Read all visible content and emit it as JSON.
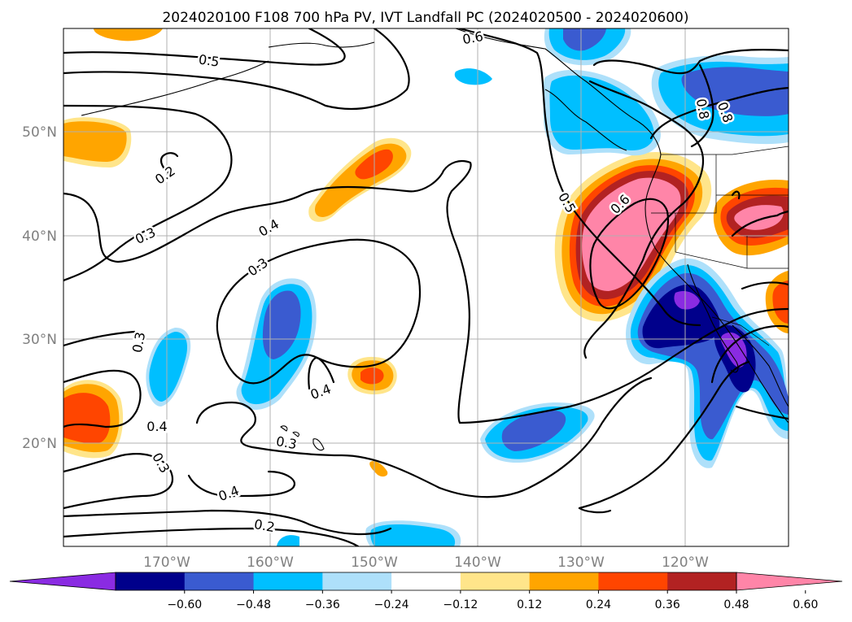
{
  "title": "2024020100 F108 700 hPa PV, IVT Landfall PC (2024020500 - 2024020600)",
  "map": {
    "lon_labels": [
      "170°W",
      "160°W",
      "150°W",
      "140°W",
      "130°W",
      "120°W"
    ],
    "lat_labels": [
      "50°N",
      "40°N",
      "30°N",
      "20°N"
    ],
    "contour_labels": [
      "0.5",
      "0.6",
      "0.2",
      "0.3",
      "0.4",
      "0.3",
      "0.3",
      "0.4",
      "0.4",
      "0.3",
      "0.3",
      "0.4",
      "0.2",
      "0.5",
      "0.6",
      "0.8",
      "0.8"
    ]
  },
  "colorbar": {
    "ticks": [
      "−0.60",
      "−0.48",
      "−0.36",
      "−0.24",
      "−0.12",
      "0.12",
      "0.24",
      "0.36",
      "0.48",
      "0.60"
    ],
    "colors": [
      "#8a2be2",
      "#00008b",
      "#3a5bd0",
      "#00bfff",
      "#aee0fa",
      "#ffffff",
      "#ffe58a",
      "#ffa500",
      "#ff4500",
      "#b22222",
      "#ff85a8"
    ]
  },
  "colors": {
    "pink": "#ff85a8",
    "firebrick": "#b22222",
    "orangered": "#ff4500",
    "orange": "#ffa500",
    "lightyellow": "#ffe58a",
    "lightblue": "#aee0fa",
    "deepskyblue": "#00bfff",
    "royalblue": "#3a5bd0",
    "navy": "#00008b",
    "violet": "#8a2be2"
  }
}
